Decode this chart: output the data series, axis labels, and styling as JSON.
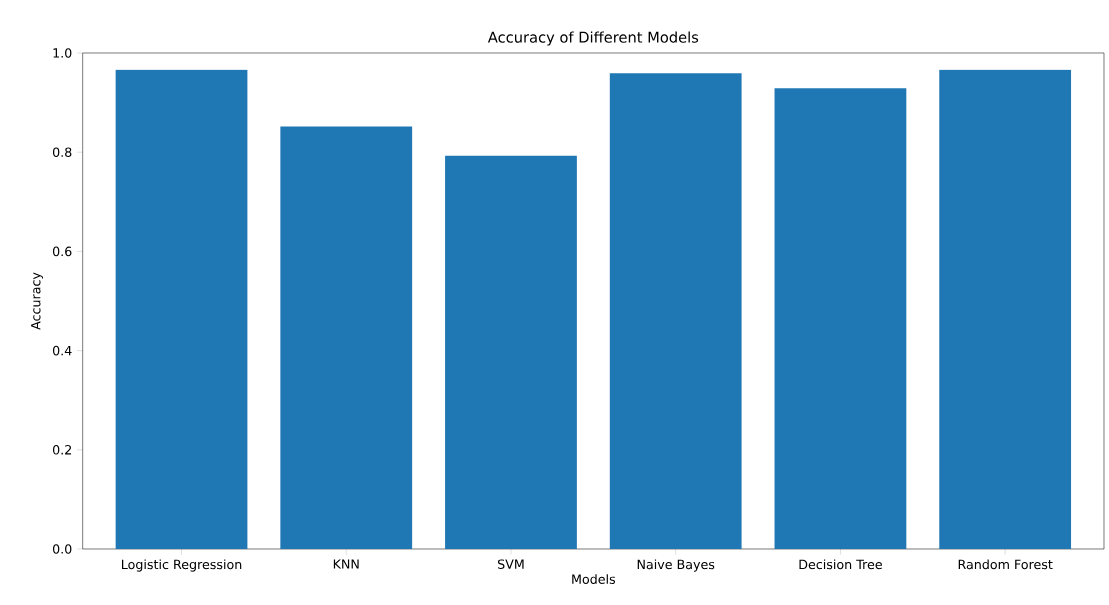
{
  "chart_data": {
    "type": "bar",
    "title": "Accuracy of Different Models",
    "xlabel": "Models",
    "ylabel": "Accuracy",
    "categories": [
      "Logistic Regression",
      "KNN",
      "SVM",
      "Naive Bayes",
      "Decision Tree",
      "Random Forest"
    ],
    "values": [
      0.966,
      0.852,
      0.793,
      0.959,
      0.929,
      0.966
    ],
    "color": "#1f77b4",
    "ylim": [
      0,
      1.0
    ],
    "yticks": [
      {
        "value": 0,
        "label": "0.0"
      },
      0.2,
      0.4,
      0.6,
      0.8,
      {
        "value": 1,
        "label": "1.0"
      }
    ],
    "grid": false
  }
}
